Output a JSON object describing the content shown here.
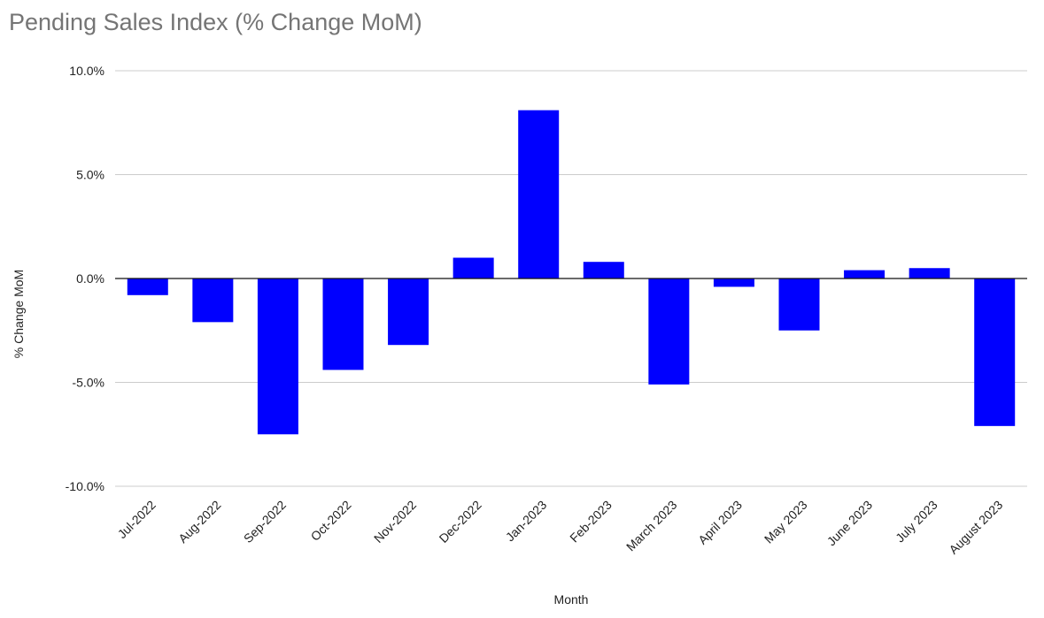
{
  "chart_data": {
    "type": "bar",
    "title": "Pending Sales Index (% Change MoM)",
    "xlabel": "Month",
    "ylabel": "% Change MoM",
    "ylim": [
      -10,
      10
    ],
    "yticks": [
      "10.0%",
      "5.0%",
      "0.0%",
      "-5.0%",
      "-10.0%"
    ],
    "ytick_values": [
      10,
      5,
      0,
      -5,
      -10
    ],
    "grid": true,
    "bar_color": "#0000ff",
    "categories": [
      "Jul-2022",
      "Aug-2022",
      "Sep-2022",
      "Oct-2022",
      "Nov-2022",
      "Dec-2022",
      "Jan-2023",
      "Feb-2023",
      "March 2023",
      "April 2023",
      "May 2023",
      "June 2023",
      "July 2023",
      "August 2023"
    ],
    "values": [
      -0.8,
      -2.1,
      -7.5,
      -4.4,
      -3.2,
      1.0,
      8.1,
      0.8,
      -5.1,
      -0.4,
      -2.5,
      0.4,
      0.5,
      -7.1
    ]
  }
}
